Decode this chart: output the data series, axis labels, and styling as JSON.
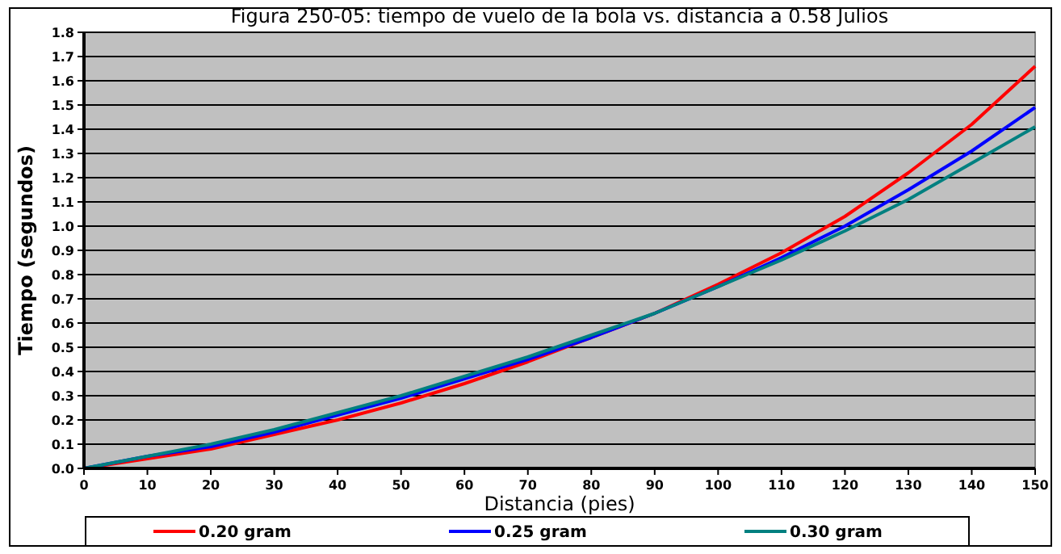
{
  "chart_data": {
    "type": "line",
    "title": "Figura 250-05: tiempo de vuelo de la bola vs. distancia a 0.58 Julios",
    "xlabel": "Distancia (pies)",
    "ylabel": "Tiempo (segundos)",
    "x": [
      0,
      10,
      20,
      30,
      40,
      50,
      60,
      70,
      80,
      90,
      100,
      110,
      120,
      130,
      140,
      150
    ],
    "series": [
      {
        "name": "0.20 gram",
        "color": "#ff0000",
        "values": [
          0,
          0.04,
          0.08,
          0.14,
          0.2,
          0.27,
          0.35,
          0.44,
          0.54,
          0.64,
          0.76,
          0.89,
          1.04,
          1.22,
          1.42,
          1.66
        ]
      },
      {
        "name": "0.25 gram",
        "color": "#0000ff",
        "values": [
          0,
          0.05,
          0.09,
          0.15,
          0.22,
          0.29,
          0.37,
          0.45,
          0.54,
          0.64,
          0.75,
          0.87,
          1.0,
          1.15,
          1.31,
          1.49
        ]
      },
      {
        "name": "0.30 gram",
        "color": "#008080",
        "values": [
          0,
          0.05,
          0.1,
          0.16,
          0.23,
          0.3,
          0.38,
          0.46,
          0.55,
          0.64,
          0.75,
          0.86,
          0.98,
          1.11,
          1.26,
          1.41
        ]
      }
    ],
    "xlim": [
      0,
      150
    ],
    "xticks": [
      0,
      10,
      20,
      30,
      40,
      50,
      60,
      70,
      80,
      90,
      100,
      110,
      120,
      130,
      140,
      150
    ],
    "ylim": [
      0,
      1.8
    ],
    "yticks": [
      {
        "value": 0,
        "label": "0.0"
      },
      0.1,
      0.2,
      0.3,
      0.4,
      0.5,
      0.6,
      0.7,
      0.8,
      0.9,
      {
        "value": 1,
        "label": "1.0"
      },
      1.1,
      1.2,
      1.3,
      1.4,
      1.5,
      1.6,
      1.7,
      1.8
    ],
    "grid": "y",
    "legend": "bottom",
    "marker": "none",
    "line_style": "solid"
  }
}
